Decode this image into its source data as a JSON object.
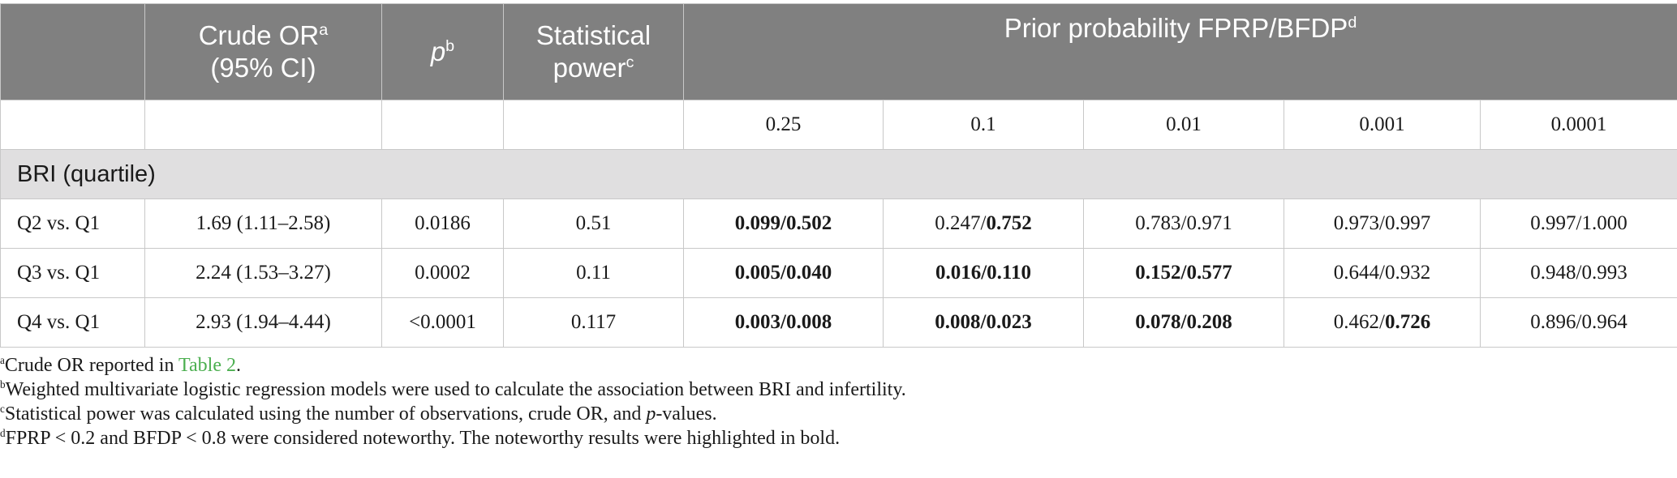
{
  "header": {
    "crude_or": "Crude OR",
    "crude_or_sup": "a",
    "crude_or_ci": "(95% CI)",
    "p": "p",
    "p_sup": "b",
    "power_line1": "Statistical",
    "power_line2": "power",
    "power_sup": "c",
    "prior": "Prior probability FPRP/BFDP",
    "prior_sup": "d",
    "priors": [
      "0.25",
      "0.1",
      "0.01",
      "0.001",
      "0.0001"
    ]
  },
  "section": "BRI (quartile)",
  "rows": [
    {
      "label": "Q2 vs. Q1",
      "or": "1.69 (1.11–2.58)",
      "p": "0.0186",
      "power": "0.51",
      "cells": [
        {
          "fprp": "0.099",
          "bfdp": "0.502",
          "fprp_bold": true,
          "bfdp_bold": true
        },
        {
          "fprp": "0.247",
          "bfdp": "0.752",
          "fprp_bold": false,
          "bfdp_bold": true
        },
        {
          "fprp": "0.783",
          "bfdp": "0.971",
          "fprp_bold": false,
          "bfdp_bold": false
        },
        {
          "fprp": "0.973",
          "bfdp": "0.997",
          "fprp_bold": false,
          "bfdp_bold": false
        },
        {
          "fprp": "0.997",
          "bfdp": "1.000",
          "fprp_bold": false,
          "bfdp_bold": false
        }
      ]
    },
    {
      "label": "Q3 vs. Q1",
      "or": "2.24 (1.53–3.27)",
      "p": "0.0002",
      "power": "0.11",
      "cells": [
        {
          "fprp": "0.005",
          "bfdp": "0.040",
          "fprp_bold": true,
          "bfdp_bold": true
        },
        {
          "fprp": "0.016",
          "bfdp": "0.110",
          "fprp_bold": true,
          "bfdp_bold": true
        },
        {
          "fprp": "0.152",
          "bfdp": "0.577",
          "fprp_bold": true,
          "bfdp_bold": true
        },
        {
          "fprp": "0.644",
          "bfdp": "0.932",
          "fprp_bold": false,
          "bfdp_bold": false
        },
        {
          "fprp": "0.948",
          "bfdp": "0.993",
          "fprp_bold": false,
          "bfdp_bold": false
        }
      ]
    },
    {
      "label": "Q4 vs. Q1",
      "or": "2.93 (1.94–4.44)",
      "p": "<0.0001",
      "power": "0.117",
      "cells": [
        {
          "fprp": "0.003",
          "bfdp": "0.008",
          "fprp_bold": true,
          "bfdp_bold": true
        },
        {
          "fprp": "0.008",
          "bfdp": "0.023",
          "fprp_bold": true,
          "bfdp_bold": true
        },
        {
          "fprp": "0.078",
          "bfdp": "0.208",
          "fprp_bold": true,
          "bfdp_bold": true
        },
        {
          "fprp": "0.462",
          "bfdp": "0.726",
          "fprp_bold": false,
          "bfdp_bold": true
        },
        {
          "fprp": "0.896",
          "bfdp": "0.964",
          "fprp_bold": false,
          "bfdp_bold": false
        }
      ]
    }
  ],
  "notes": {
    "a_sup": "a",
    "a_pre": "Crude OR reported in ",
    "a_link": "Table 2",
    "a_post": ".",
    "b_sup": "b",
    "b_text": "Weighted multivariate logistic regression models were used to calculate the association between BRI and infertility.",
    "c_sup": "c",
    "c_pre": "Statistical power was calculated using the number of observations, crude OR, and ",
    "c_ital": "p",
    "c_post": "-values.",
    "d_sup": "d",
    "d_text": "FPRP < 0.2 and BFDP < 0.8 were considered noteworthy. The noteworthy results were highlighted in bold."
  },
  "colors": {
    "header_bg": "#808080",
    "section_bg": "#e0dfe0",
    "link": "#4caf50"
  }
}
